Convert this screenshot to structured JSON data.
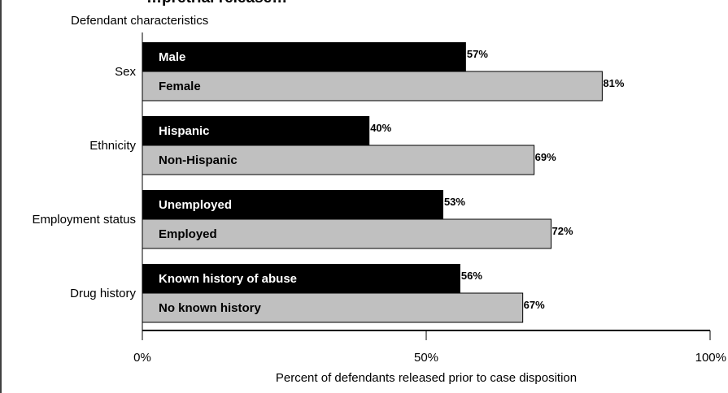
{
  "chart_data": {
    "type": "bar",
    "orientation": "horizontal",
    "title": "…pretrial release…",
    "ylabel": "Defendant characteristics",
    "xlabel": "Percent of defendants released prior to case disposition",
    "xlim": [
      0,
      100
    ],
    "x_ticks": [
      "0%",
      "50%",
      "100%"
    ],
    "grid": false,
    "legend": "none",
    "colors": {
      "dark": "#000000",
      "light": "#c0c0c0"
    },
    "groups": [
      {
        "category": "Sex",
        "bars": [
          {
            "label": "Male",
            "value": 57,
            "value_label": "57%",
            "style": "dark"
          },
          {
            "label": "Female",
            "value": 81,
            "value_label": "81%",
            "style": "light"
          }
        ]
      },
      {
        "category": "Ethnicity",
        "bars": [
          {
            "label": "Hispanic",
            "value": 40,
            "value_label": "40%",
            "style": "dark"
          },
          {
            "label": "Non-Hispanic",
            "value": 69,
            "value_label": "69%",
            "style": "light"
          }
        ]
      },
      {
        "category": "Employment status",
        "bars": [
          {
            "label": "Unemployed",
            "value": 53,
            "value_label": "53%",
            "style": "dark"
          },
          {
            "label": "Employed",
            "value": 72,
            "value_label": "72%",
            "style": "light"
          }
        ]
      },
      {
        "category": "Drug history",
        "bars": [
          {
            "label": "Known history of abuse",
            "value": 56,
            "value_label": "56%",
            "style": "dark"
          },
          {
            "label": "No known history",
            "value": 67,
            "value_label": "67%",
            "style": "light"
          }
        ]
      }
    ]
  }
}
